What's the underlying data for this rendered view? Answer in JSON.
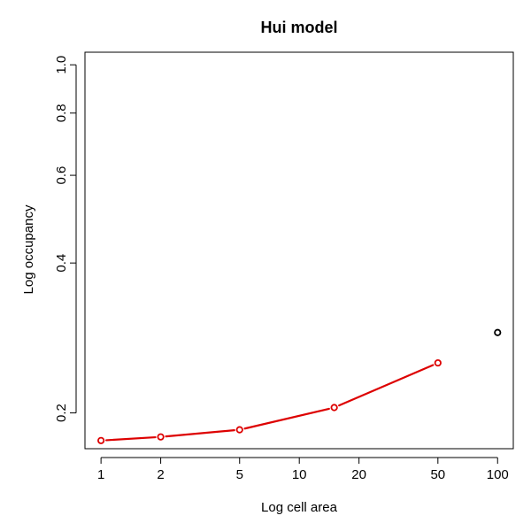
{
  "chart_data": {
    "type": "line",
    "title": "Hui model",
    "xlabel": "Log cell area",
    "ylabel": "Log occupancy",
    "x_scale": "log",
    "y_scale": "log",
    "xlim": [
      0.83,
      120
    ],
    "ylim": [
      0.1695,
      1.06
    ],
    "x_ticks": [
      1,
      2,
      5,
      10,
      20,
      50,
      100
    ],
    "x_tick_labels": [
      "1",
      "2",
      "5",
      "10",
      "20",
      "50",
      "100"
    ],
    "y_ticks": [
      0.2,
      0.4,
      0.6,
      0.8,
      1.0
    ],
    "y_tick_labels": [
      "0.2",
      "0.4",
      "0.6",
      "0.8",
      "1.0"
    ],
    "grid": false,
    "series": [
      {
        "style": "line+points",
        "color": "#dd0000",
        "x": [
          1,
          2,
          5,
          15,
          50
        ],
        "y": [
          0.176,
          0.179,
          0.185,
          0.205,
          0.252
        ]
      },
      {
        "style": "points",
        "color": "#000000",
        "x": [
          100
        ],
        "y": [
          0.29
        ]
      }
    ]
  }
}
